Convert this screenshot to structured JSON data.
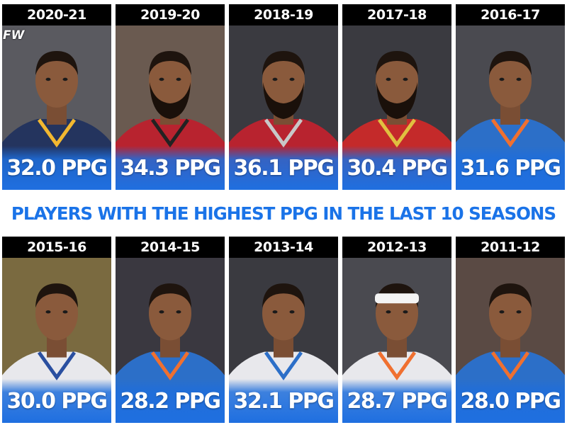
{
  "logo": "FW",
  "headline": "PLAYERS WITH THE HIGHEST PPG IN THE LAST 10 SEASONS",
  "top_row": [
    {
      "season": "2020-21",
      "ppg": "32.0 PPG",
      "jersey": "#24345e",
      "trim": "#f2b830",
      "bg": "#5a5a60",
      "beard": false,
      "headband": false
    },
    {
      "season": "2019-20",
      "ppg": "34.3 PPG",
      "jersey": "#b8232f",
      "trim": "#222222",
      "bg": "#6a5a50",
      "beard": true,
      "headband": false
    },
    {
      "season": "2018-19",
      "ppg": "36.1 PPG",
      "jersey": "#b8232f",
      "trim": "#c8c8c8",
      "bg": "#3a3a40",
      "beard": true,
      "headband": false
    },
    {
      "season": "2017-18",
      "ppg": "30.4 PPG",
      "jersey": "#c42a2a",
      "trim": "#e0c040",
      "bg": "#3a3a40",
      "beard": true,
      "headband": false
    },
    {
      "season": "2016-17",
      "ppg": "31.6 PPG",
      "jersey": "#2c6fc8",
      "trim": "#f07030",
      "bg": "#4a4a50",
      "beard": false,
      "headband": false
    }
  ],
  "bottom_row": [
    {
      "season": "2015-16",
      "ppg": "30.0 PPG",
      "jersey": "#e8e8ec",
      "trim": "#2a4fa0",
      "bg": "#7a6a40",
      "beard": false,
      "headband": false
    },
    {
      "season": "2014-15",
      "ppg": "28.2 PPG",
      "jersey": "#2c6fc8",
      "trim": "#f07030",
      "bg": "#3a3840",
      "beard": false,
      "headband": false
    },
    {
      "season": "2013-14",
      "ppg": "32.1 PPG",
      "jersey": "#e8e8ec",
      "trim": "#2c6fc8",
      "bg": "#3a3a40",
      "beard": false,
      "headband": false
    },
    {
      "season": "2012-13",
      "ppg": "28.7 PPG",
      "jersey": "#e8e8ec",
      "trim": "#f07030",
      "bg": "#4a4a50",
      "beard": false,
      "headband": true
    },
    {
      "season": "2011-12",
      "ppg": "28.0 PPG",
      "jersey": "#2c6fc8",
      "trim": "#f07030",
      "bg": "#5a4a44",
      "beard": false,
      "headband": false
    }
  ]
}
